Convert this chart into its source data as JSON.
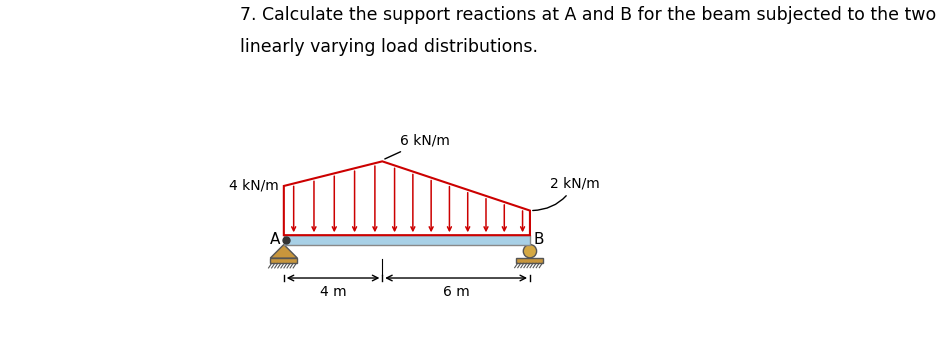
{
  "title_line1": "7. Calculate the support reactions at A and B for the beam subjected to the two",
  "title_line2": "linearly varying load distributions.",
  "title_fontsize": 12.5,
  "bg_color": "#ffffff",
  "beam_color": "#a8d0e6",
  "beam_edge_color": "#888888",
  "load_color": "#cc0000",
  "ground_fill": "#c8963c",
  "ground_edge": "#555555",
  "label_6kNm": "6 kN/m",
  "label_4kNm": "4 kN/m",
  "label_2kNm": "2 kN/m",
  "label_A": "A",
  "label_B": "B",
  "label_4m": "4 m",
  "label_6m": "6 m"
}
